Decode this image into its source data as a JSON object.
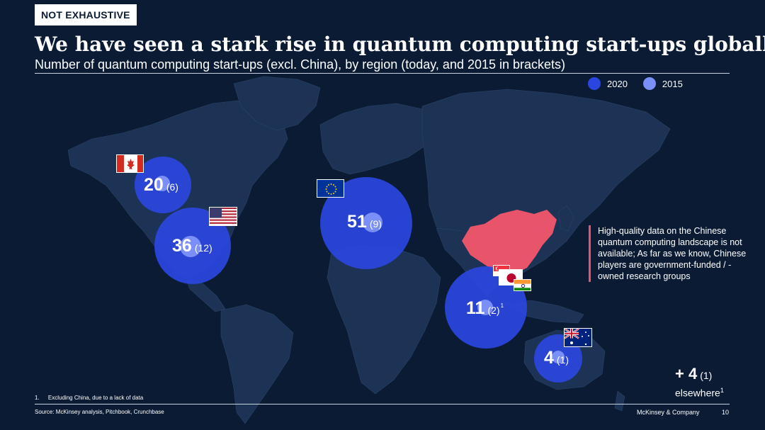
{
  "header": {
    "badge": "NOT EXHAUSTIVE",
    "title": "We have seen a stark rise in quantum computing start-ups globally",
    "subtitle": "Number of quantum computing start-ups (excl. China), by region (today, and 2015 in brackets)"
  },
  "legend": {
    "items": [
      {
        "label": "2020",
        "color": "#2b45e0"
      },
      {
        "label": "2015",
        "color": "#7a8ff7"
      }
    ]
  },
  "regions": [
    {
      "id": "canada",
      "value_2020": "20",
      "value_2015": "(6)",
      "flag": "canada-flag"
    },
    {
      "id": "usa",
      "value_2020": "36",
      "value_2015": "(12)",
      "flag": "usa-flag"
    },
    {
      "id": "europe",
      "value_2020": "51",
      "value_2015": "(9)",
      "flag": "eu-flag"
    },
    {
      "id": "asia",
      "value_2020": "11",
      "value_2015": "(2)",
      "footnote_mark": "1",
      "flags": [
        "singapore-flag",
        "japan-flag",
        "india-flag"
      ]
    },
    {
      "id": "australia",
      "value_2020": "4",
      "value_2015": "(1)",
      "flag": "australia-flag"
    }
  ],
  "china": {
    "color": "#e8556a",
    "note": "High-quality data on the Chinese quantum computing landscape is not available; As far as we know, Chinese players are government-funded / -owned research groups"
  },
  "elsewhere": {
    "value_2020": "+ 4",
    "value_2015": "(1)",
    "label": "elsewhere",
    "footnote_mark": "1"
  },
  "footer": {
    "footnote_number": "1.",
    "footnote": "Excluding China, due to a lack of data",
    "source": "Source: McKinsey analysis, Pitchbook, Crunchbase",
    "company": "McKinsey & Company",
    "page": "10"
  },
  "colors": {
    "background": "#0b1b33",
    "land": "#1d3355",
    "bubble_2020": "#2b45e0",
    "bubble_2015": "#7a8ff7",
    "china": "#e8556a"
  }
}
